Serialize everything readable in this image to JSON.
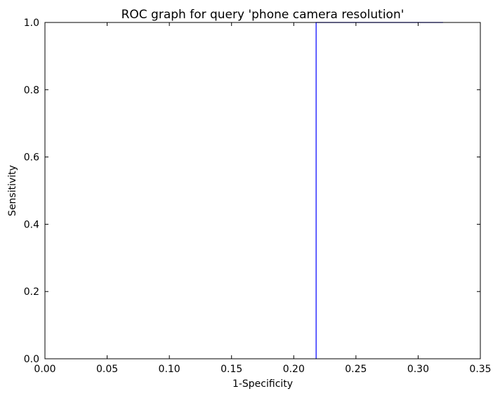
{
  "chart_data": {
    "type": "line",
    "title": "ROC graph for query 'phone camera resolution'",
    "xlabel": "1-Specificity",
    "ylabel": "Sensitivity",
    "xlim": [
      0.0,
      0.35
    ],
    "ylim": [
      0.0,
      1.0
    ],
    "xticks": [
      "0.00",
      "0.05",
      "0.10",
      "0.15",
      "0.20",
      "0.25",
      "0.30",
      "0.35"
    ],
    "yticks": [
      "0.0",
      "0.2",
      "0.4",
      "0.6",
      "0.8",
      "1.0"
    ],
    "grid": false,
    "series": [
      {
        "color": "#0000ff",
        "x": [
          0.218,
          0.218,
          0.32
        ],
        "y": [
          0.0,
          1.0,
          1.0
        ]
      }
    ]
  }
}
